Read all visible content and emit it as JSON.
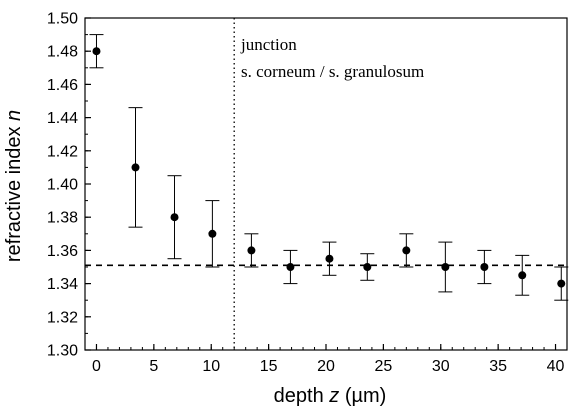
{
  "chart_data": {
    "type": "scatter",
    "xlabel": "depth z (µm)",
    "xlabel_prefix": "depth ",
    "xlabel_var": "z",
    "xlabel_suffix": " (µm)",
    "ylabel": "refractive index n",
    "ylabel_prefix": "refractive index ",
    "ylabel_var": "n",
    "xlim": [
      -1,
      41
    ],
    "ylim": [
      1.3,
      1.5
    ],
    "x_ticks": [
      0,
      5,
      10,
      15,
      20,
      25,
      30,
      35,
      40
    ],
    "x_minor_step": 1,
    "y_ticks": [
      "1.30",
      "1.32",
      "1.34",
      "1.36",
      "1.38",
      "1.40",
      "1.42",
      "1.44",
      "1.46",
      "1.48",
      "1.50"
    ],
    "y_minor_step": 0.01,
    "grid": false,
    "series": [
      {
        "points": [
          {
            "x": 0,
            "y": 1.48,
            "err_low": 1.47,
            "err_high": 1.49
          },
          {
            "x": 3.4,
            "y": 1.41,
            "err_low": 1.374,
            "err_high": 1.446
          },
          {
            "x": 6.8,
            "y": 1.38,
            "err_low": 1.355,
            "err_high": 1.405
          },
          {
            "x": 10.1,
            "y": 1.37,
            "err_low": 1.35,
            "err_high": 1.39
          },
          {
            "x": 13.5,
            "y": 1.36,
            "err_low": 1.35,
            "err_high": 1.37
          },
          {
            "x": 16.9,
            "y": 1.35,
            "err_low": 1.34,
            "err_high": 1.36
          },
          {
            "x": 20.3,
            "y": 1.355,
            "err_low": 1.345,
            "err_high": 1.365
          },
          {
            "x": 23.6,
            "y": 1.35,
            "err_low": 1.342,
            "err_high": 1.358
          },
          {
            "x": 27.0,
            "y": 1.36,
            "err_low": 1.35,
            "err_high": 1.37
          },
          {
            "x": 30.4,
            "y": 1.35,
            "err_low": 1.335,
            "err_high": 1.365
          },
          {
            "x": 33.8,
            "y": 1.35,
            "err_low": 1.34,
            "err_high": 1.36
          },
          {
            "x": 37.1,
            "y": 1.345,
            "err_low": 1.333,
            "err_high": 1.357
          },
          {
            "x": 40.5,
            "y": 1.34,
            "err_low": 1.33,
            "err_high": 1.35
          }
        ]
      }
    ],
    "reference_line": {
      "y": 1.351,
      "style": "dashed"
    },
    "junction_line": {
      "x": 12,
      "style": "dotted"
    },
    "annotations": [
      "junction",
      "s. corneum / s. granulosum"
    ]
  }
}
